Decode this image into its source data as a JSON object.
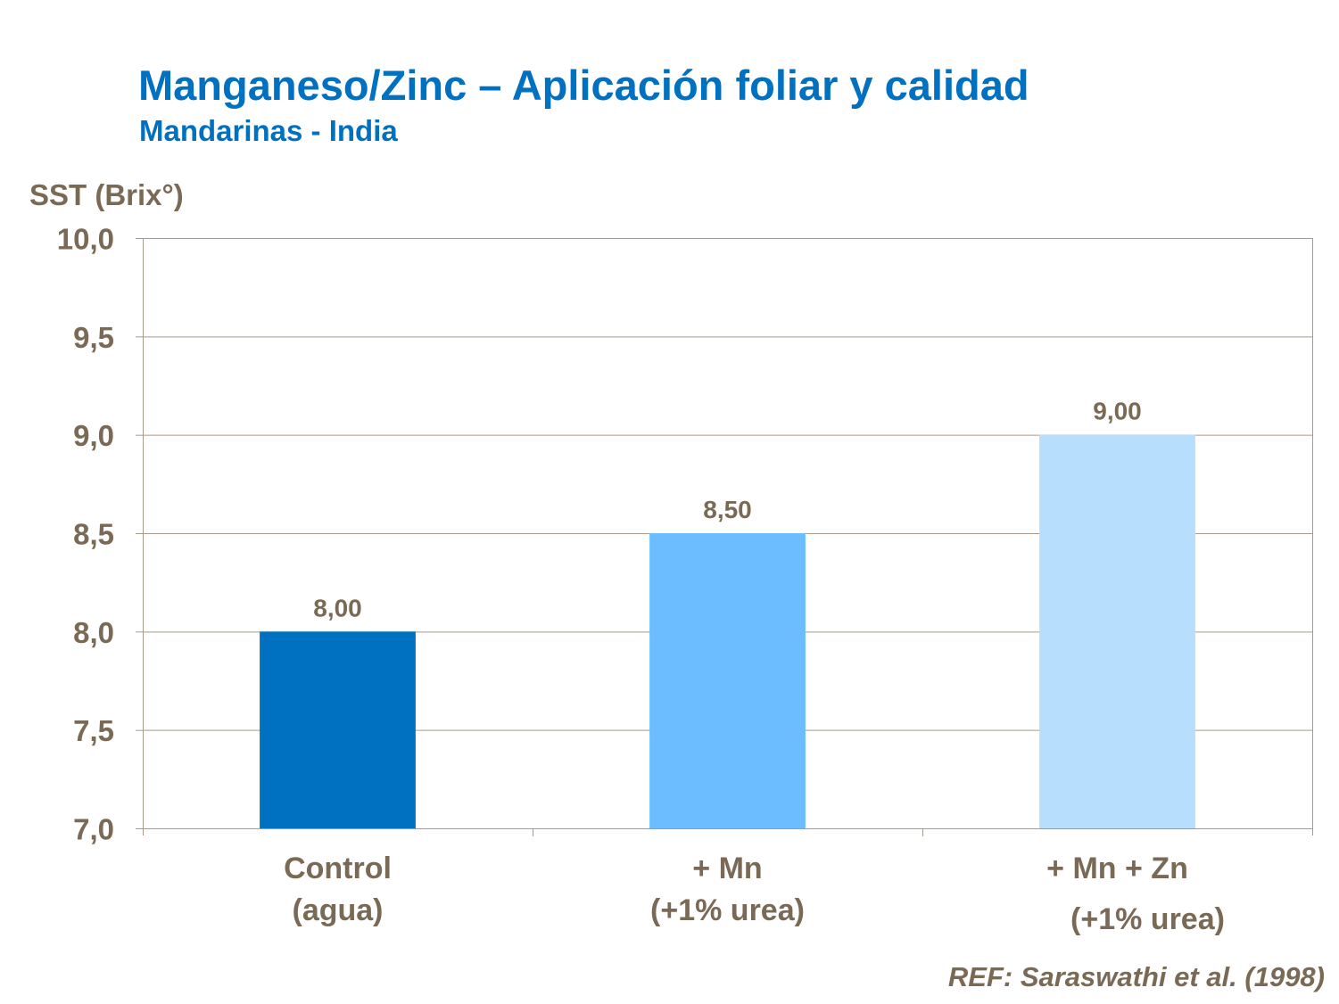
{
  "chart_data": {
    "type": "bar",
    "title": "Manganeso/Zinc – Aplicación foliar y calidad",
    "subtitle": "Mandarinas - India",
    "ylabel": "SST (Brix°)",
    "xlabel": "",
    "categories": [
      [
        "Control",
        "(agua)"
      ],
      [
        "+ Mn",
        "(+1% urea)"
      ],
      [
        "+ Mn + Zn",
        "(+1% urea)"
      ]
    ],
    "values": [
      8.0,
      8.5,
      9.0
    ],
    "data_labels": [
      "8,00",
      "8,50",
      "9,00"
    ],
    "bar_colors": [
      "#0070c0",
      "#6bbdff",
      "#b7dffd"
    ],
    "ylim": [
      7.0,
      10.0
    ],
    "yticks": [
      7.0,
      7.5,
      8.0,
      8.5,
      9.0,
      9.5,
      10.0
    ],
    "ytick_labels": [
      "7,0",
      "7,5",
      "8,0",
      "8,5",
      "9,0",
      "9,5",
      "10,0"
    ],
    "grid": true,
    "legend": "none",
    "annotation": "REF: Saraswathi et al. (1998)"
  },
  "colors": {
    "title": "#0070c0",
    "text": "#7a6a55",
    "grid": "#a89a8a"
  }
}
